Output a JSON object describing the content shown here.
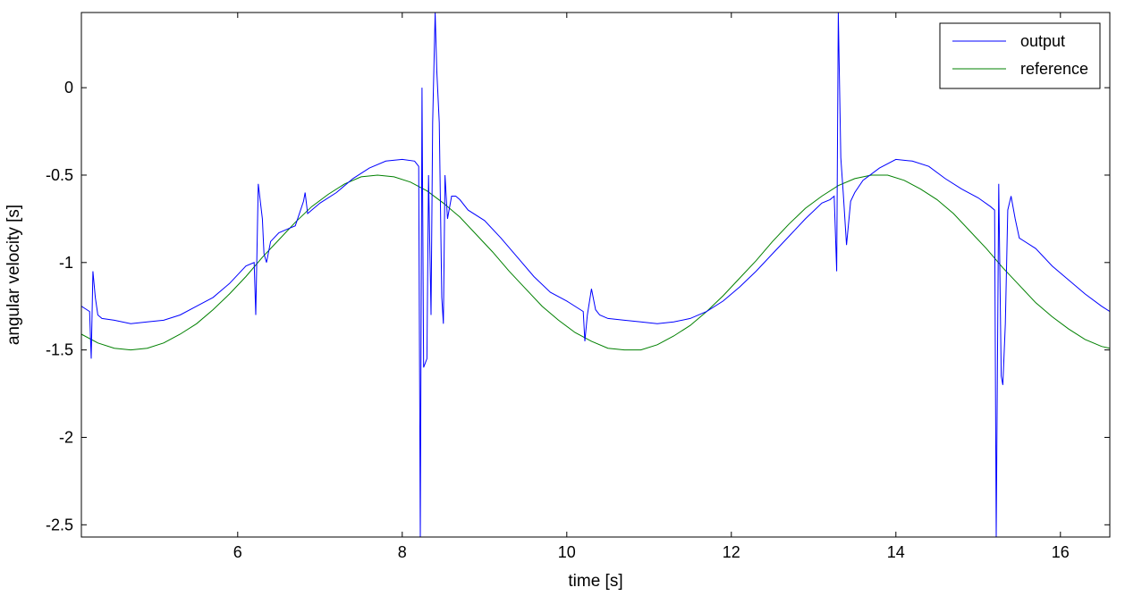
{
  "chart_data": {
    "type": "line",
    "title": "",
    "xlabel": "time [s]",
    "ylabel": "angular velocity [s]",
    "xlim": [
      4.1,
      16.6
    ],
    "ylim": [
      -2.57,
      0.43
    ],
    "xticks": [
      6,
      8,
      10,
      12,
      14,
      16
    ],
    "xtick_labels": [
      "6",
      "8",
      "10",
      "12",
      "14",
      "16"
    ],
    "yticks": [
      0,
      -0.5,
      -1,
      -1.5,
      -2,
      -2.5
    ],
    "ytick_labels": [
      "0",
      "-0.5",
      "-1",
      "-1.5",
      "-2",
      "-2.5"
    ],
    "grid": false,
    "legend": "top-right",
    "series": [
      {
        "name": "output",
        "color": "#0000ff",
        "x": [
          4.1,
          4.2,
          4.22,
          4.24,
          4.27,
          4.3,
          4.35,
          4.5,
          4.7,
          4.9,
          5.1,
          5.3,
          5.5,
          5.7,
          5.9,
          6.1,
          6.2,
          6.22,
          6.25,
          6.3,
          6.32,
          6.35,
          6.4,
          6.5,
          6.6,
          6.7,
          6.8,
          6.82,
          6.85,
          7.0,
          7.2,
          7.4,
          7.6,
          7.8,
          8.0,
          8.15,
          8.2,
          8.22,
          8.24,
          8.26,
          8.3,
          8.32,
          8.35,
          8.37,
          8.4,
          8.42,
          8.45,
          8.48,
          8.5,
          8.52,
          8.55,
          8.6,
          8.65,
          8.7,
          8.8,
          9.0,
          9.2,
          9.4,
          9.6,
          9.8,
          10.0,
          10.2,
          10.22,
          10.25,
          10.3,
          10.35,
          10.4,
          10.5,
          10.7,
          10.9,
          11.1,
          11.3,
          11.5,
          11.7,
          11.9,
          12.1,
          12.3,
          12.5,
          12.7,
          12.9,
          13.1,
          13.2,
          13.25,
          13.28,
          13.3,
          13.33,
          13.36,
          13.4,
          13.45,
          13.5,
          13.6,
          13.8,
          14.0,
          14.2,
          14.4,
          14.6,
          14.8,
          15.0,
          15.15,
          15.2,
          15.22,
          15.25,
          15.28,
          15.3,
          15.33,
          15.36,
          15.4,
          15.45,
          15.5,
          15.7,
          15.9,
          16.1,
          16.3,
          16.5,
          16.6
        ],
        "y": [
          -1.25,
          -1.28,
          -1.55,
          -1.05,
          -1.2,
          -1.3,
          -1.32,
          -1.33,
          -1.35,
          -1.34,
          -1.33,
          -1.3,
          -1.25,
          -1.2,
          -1.12,
          -1.02,
          -1.0,
          -1.3,
          -0.55,
          -0.75,
          -0.95,
          -1.0,
          -0.88,
          -0.83,
          -0.81,
          -0.79,
          -0.65,
          -0.6,
          -0.72,
          -0.66,
          -0.6,
          -0.52,
          -0.46,
          -0.42,
          -0.41,
          -0.42,
          -0.45,
          -2.57,
          0.0,
          -1.6,
          -1.55,
          -0.5,
          -1.3,
          -0.2,
          0.43,
          0.1,
          -0.2,
          -1.2,
          -1.35,
          -0.5,
          -0.75,
          -0.62,
          -0.62,
          -0.64,
          -0.7,
          -0.76,
          -0.86,
          -0.97,
          -1.08,
          -1.17,
          -1.22,
          -1.28,
          -1.45,
          -1.3,
          -1.15,
          -1.27,
          -1.3,
          -1.32,
          -1.33,
          -1.34,
          -1.35,
          -1.34,
          -1.32,
          -1.28,
          -1.22,
          -1.14,
          -1.05,
          -0.95,
          -0.85,
          -0.75,
          -0.66,
          -0.64,
          -0.62,
          -1.05,
          0.43,
          -0.4,
          -0.6,
          -0.9,
          -0.65,
          -0.6,
          -0.53,
          -0.46,
          -0.41,
          -0.42,
          -0.45,
          -0.52,
          -0.58,
          -0.63,
          -0.68,
          -0.7,
          -2.57,
          -0.55,
          -1.65,
          -1.7,
          -1.35,
          -0.7,
          -0.62,
          -0.75,
          -0.86,
          -0.92,
          -1.02,
          -1.1,
          -1.18,
          -1.25,
          -1.28
        ]
      },
      {
        "name": "reference",
        "color": "#008000",
        "x": [
          4.1,
          4.3,
          4.5,
          4.7,
          4.9,
          5.1,
          5.3,
          5.5,
          5.7,
          5.9,
          6.1,
          6.3,
          6.5,
          6.7,
          6.9,
          7.1,
          7.3,
          7.5,
          7.7,
          7.9,
          8.1,
          8.3,
          8.5,
          8.7,
          8.9,
          9.1,
          9.3,
          9.5,
          9.7,
          9.9,
          10.1,
          10.3,
          10.5,
          10.7,
          10.9,
          11.1,
          11.3,
          11.5,
          11.7,
          11.9,
          12.1,
          12.3,
          12.5,
          12.7,
          12.9,
          13.1,
          13.3,
          13.5,
          13.7,
          13.9,
          14.1,
          14.3,
          14.5,
          14.7,
          14.9,
          15.1,
          15.3,
          15.5,
          15.7,
          15.9,
          16.1,
          16.3,
          16.5,
          16.6
        ],
        "y": [
          -1.41,
          -1.46,
          -1.49,
          -1.5,
          -1.49,
          -1.46,
          -1.41,
          -1.35,
          -1.27,
          -1.18,
          -1.08,
          -0.97,
          -0.87,
          -0.77,
          -0.68,
          -0.61,
          -0.55,
          -0.51,
          -0.5,
          -0.51,
          -0.54,
          -0.59,
          -0.66,
          -0.74,
          -0.84,
          -0.94,
          -1.05,
          -1.15,
          -1.25,
          -1.33,
          -1.4,
          -1.45,
          -1.49,
          -1.5,
          -1.5,
          -1.47,
          -1.42,
          -1.36,
          -1.28,
          -1.19,
          -1.09,
          -0.99,
          -0.88,
          -0.78,
          -0.69,
          -0.62,
          -0.56,
          -0.52,
          -0.5,
          -0.5,
          -0.53,
          -0.58,
          -0.64,
          -0.72,
          -0.82,
          -0.92,
          -1.03,
          -1.13,
          -1.23,
          -1.31,
          -1.38,
          -1.44,
          -1.48,
          -1.49
        ]
      }
    ]
  }
}
